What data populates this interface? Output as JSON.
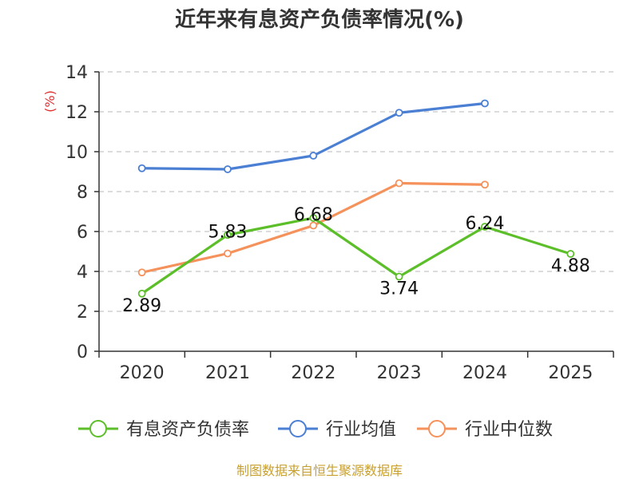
{
  "chart_data": {
    "type": "line",
    "title": "近年来有息资产负债率情况(%)",
    "ylabel": "(%)",
    "xlabel": "",
    "categories": [
      "2020",
      "2021",
      "2022",
      "2023",
      "2024",
      "2025"
    ],
    "ylim": [
      0,
      14
    ],
    "yticks": [
      0,
      2,
      4,
      6,
      8,
      10,
      12,
      14
    ],
    "grid": true,
    "legend_position": "bottom",
    "series": [
      {
        "name": "有息资产负债率",
        "color": "#5cbf2a",
        "values": [
          2.89,
          5.83,
          6.68,
          3.74,
          6.24,
          4.88
        ],
        "show_labels": true
      },
      {
        "name": "行业均值",
        "color": "#4a7fd4",
        "values": [
          9.17,
          9.12,
          9.8,
          11.95,
          12.42,
          null
        ],
        "show_labels": false
      },
      {
        "name": "行业中位数",
        "color": "#f5915a",
        "values": [
          3.95,
          4.9,
          6.3,
          8.42,
          8.35,
          null
        ],
        "show_labels": false
      }
    ],
    "source": "制图数据来自恒生聚源数据库"
  }
}
